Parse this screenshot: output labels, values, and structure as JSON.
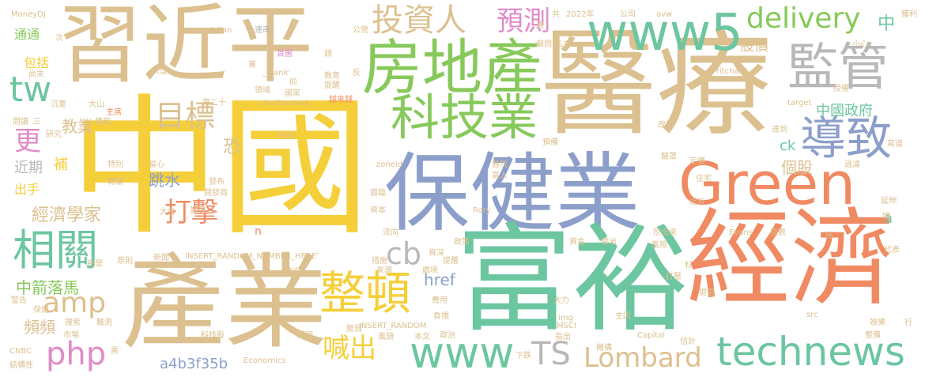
{
  "palette": {
    "tan": "#dcc08f",
    "green": "#87c95a",
    "teal": "#6cc6a0",
    "blue": "#8c9fcb",
    "orange": "#f08a62",
    "yellow": "#f5cf3a",
    "pink": "#e08bc8",
    "grey": "#b8b8b8"
  },
  "words": [
    {
      "text": "中國",
      "color": "yellow"
    },
    {
      "text": "醫療",
      "color": "tan"
    },
    {
      "text": "保健業",
      "color": "blue"
    },
    {
      "text": "富裕",
      "color": "teal"
    },
    {
      "text": "經濟",
      "color": "orange"
    },
    {
      "text": "產業",
      "color": "tan"
    },
    {
      "text": "習近平",
      "color": "tan"
    },
    {
      "text": "房地產",
      "color": "green"
    },
    {
      "text": "Green",
      "color": "orange"
    },
    {
      "text": "www5",
      "color": "teal"
    },
    {
      "text": "科技業",
      "color": "green"
    },
    {
      "text": "監管",
      "color": "grey"
    },
    {
      "text": "導致",
      "color": "blue"
    },
    {
      "text": "相關",
      "color": "teal"
    },
    {
      "text": "整頓",
      "color": "yellow"
    },
    {
      "text": "www",
      "color": "teal"
    },
    {
      "text": "TS",
      "color": "grey"
    },
    {
      "text": "Lombard",
      "color": "tan"
    },
    {
      "text": "technews",
      "color": "teal"
    },
    {
      "text": "delivery",
      "color": "green"
    },
    {
      "text": "投資人",
      "color": "tan"
    },
    {
      "text": "預測",
      "color": "pink"
    },
    {
      "text": "目標",
      "color": "tan"
    },
    {
      "text": "tw",
      "color": "teal"
    },
    {
      "text": "amp",
      "color": "tan"
    },
    {
      "text": "php",
      "color": "pink"
    },
    {
      "text": "cb",
      "color": "grey"
    },
    {
      "text": "打擊",
      "color": "orange"
    },
    {
      "text": "喊出",
      "color": "yellow"
    },
    {
      "text": "更",
      "color": "pink"
    },
    {
      "text": "經濟學家",
      "color": "tan"
    },
    {
      "text": "中箭落馬",
      "color": "green"
    },
    {
      "text": "教業",
      "color": "tan"
    },
    {
      "text": "個股",
      "color": "tan"
    },
    {
      "text": "中國政府",
      "color": "teal"
    },
    {
      "text": "股價",
      "color": "tan"
    },
    {
      "text": "中",
      "color": "teal"
    },
    {
      "text": "恐",
      "color": "tan"
    },
    {
      "text": "跳水",
      "color": "blue"
    },
    {
      "text": "a4b3f35b",
      "color": "blue"
    },
    {
      "text": "頻頻",
      "color": "tan"
    },
    {
      "text": "href",
      "color": "blue"
    },
    {
      "text": "近期",
      "color": "grey"
    },
    {
      "text": "補",
      "color": "yellow"
    },
    {
      "text": "出手",
      "color": "yellow"
    },
    {
      "text": "包括",
      "color": "yellow"
    },
    {
      "text": "通通",
      "color": "green"
    },
    {
      "text": "ck",
      "color": "teal"
    },
    {
      "text": "a",
      "color": "teal"
    },
    {
      "text": "n",
      "color": "orange"
    },
    {
      "text": "MoneyDJ",
      "color": "tan"
    },
    {
      "text": "2022年",
      "color": "tan"
    },
    {
      "text": "公司",
      "color": "tan"
    },
    {
      "text": "avw",
      "color": "tan"
    },
    {
      "text": "獲利",
      "color": "tan"
    },
    {
      "text": "Julian",
      "color": "tan"
    },
    {
      "text": "一連串",
      "color": "grey"
    },
    {
      "text": "公營",
      "color": "tan"
    },
    {
      "text": "顧問",
      "color": "tan"
    },
    {
      "text": "私立",
      "color": "tan"
    },
    {
      "text": "小心",
      "color": "tan"
    },
    {
      "text": "Pritchard",
      "color": "tan"
    },
    {
      "text": "尚未",
      "color": "tan"
    },
    {
      "text": "大型",
      "color": "tan"
    },
    {
      "text": "首圖",
      "color": "pink"
    },
    {
      "text": "錢",
      "color": "tan"
    },
    {
      "text": "_blank'",
      "color": "tan"
    },
    {
      "text": "教育",
      "color": "tan"
    },
    {
      "text": "提醒",
      "color": "tan"
    },
    {
      "text": "反",
      "color": "tan"
    },
    {
      "text": "黨",
      "color": "tan"
    },
    {
      "text": "前",
      "color": "tan"
    },
    {
      "text": "領域",
      "color": "tan"
    },
    {
      "text": "國家",
      "color": "tan"
    },
    {
      "text": "越來越",
      "color": "orange"
    },
    {
      "text": "沉重",
      "color": "tan"
    },
    {
      "text": "大山",
      "color": "tan"
    },
    {
      "text": "主席",
      "color": "orange"
    },
    {
      "text": "第二十",
      "color": "tan"
    },
    {
      "text": "shutterstock",
      "color": "tan"
    },
    {
      "text": "target",
      "color": "tan"
    },
    {
      "text": "授權",
      "color": "tan"
    },
    {
      "text": "閱讀",
      "color": "tan"
    },
    {
      "text": "三",
      "color": "tan"
    },
    {
      "text": "轉載",
      "color": "tan"
    },
    {
      "text": "研究",
      "color": "tan"
    },
    {
      "text": "改革",
      "color": "tan"
    },
    {
      "text": "達到",
      "color": "tan"
    },
    {
      "text": "預備",
      "color": "tan"
    },
    {
      "text": "報告",
      "color": "tan"
    },
    {
      "text": "寫道",
      "color": "tan"
    },
    {
      "text": "特別",
      "color": "tan"
    },
    {
      "text": "當心",
      "color": "tan"
    },
    {
      "text": "zoneid",
      "color": "tan"
    },
    {
      "text": "醫院",
      "color": "tan"
    },
    {
      "text": "龍罩",
      "color": "tan"
    },
    {
      "text": "定價",
      "color": "tan"
    },
    {
      "text": "過濾",
      "color": "tan"
    },
    {
      "text": "富人",
      "color": "tan"
    },
    {
      "text": "發布",
      "color": "tan"
    },
    {
      "text": "轉讓",
      "color": "tan"
    },
    {
      "text": "開發商",
      "color": "tan"
    },
    {
      "text": "住宅",
      "color": "tan"
    },
    {
      "text": "面臨",
      "color": "tan"
    },
    {
      "text": "資本",
      "color": "tan"
    },
    {
      "text": "北京",
      "color": "tan"
    },
    {
      "text": "延伸",
      "color": "tan"
    },
    {
      "text": "大會",
      "color": "tan"
    },
    {
      "text": "當局",
      "color": "tan"
    },
    {
      "text": "Rory",
      "color": "tan"
    },
    {
      "text": "壞",
      "color": "tan"
    },
    {
      "text": "政策",
      "color": "tan"
    },
    {
      "text": "指數",
      "color": "tan"
    },
    {
      "text": "挖出來",
      "color": "tan"
    },
    {
      "text": "Evans",
      "color": "tan"
    },
    {
      "text": "流向",
      "color": "tan"
    },
    {
      "text": "資金",
      "color": "tan"
    },
    {
      "text": "察出",
      "color": "tan"
    },
    {
      "text": "風險",
      "color": "tan"
    },
    {
      "text": "座",
      "color": "tan"
    },
    {
      "text": "代表",
      "color": "tan"
    },
    {
      "text": "原則",
      "color": "tan"
    },
    {
      "text": "新聞",
      "color": "tan"
    },
    {
      "text": "INSERT_RANDOM_NUMBER_HERE'",
      "color": "tan"
    },
    {
      "text": "措施",
      "color": "tan"
    },
    {
      "text": "資深",
      "color": "tan"
    },
    {
      "text": "提醒",
      "color": "tan"
    },
    {
      "text": "民眾",
      "color": "tan"
    },
    {
      "text": "情況",
      "color": "tan"
    },
    {
      "text": "來源",
      "color": "tan"
    },
    {
      "text": "處境",
      "color": "tan"
    },
    {
      "text": "打壓",
      "color": "tan"
    },
    {
      "text": "科",
      "color": "tan"
    },
    {
      "text": "警告",
      "color": "tan"
    },
    {
      "text": "美",
      "color": "tan"
    },
    {
      "text": "費用",
      "color": "tan"
    },
    {
      "text": "大力",
      "color": "tan"
    },
    {
      "text": "提倡",
      "color": "tan"
    },
    {
      "text": "負擔",
      "color": "tan"
    },
    {
      "text": "搜索",
      "color": "tan"
    },
    {
      "text": "難測",
      "color": "tan"
    },
    {
      "text": "INSERT_RANDOM",
      "color": "tan"
    },
    {
      "text": "img",
      "color": "tan"
    },
    {
      "text": "主因",
      "color": "tan"
    },
    {
      "text": "src",
      "color": "tan"
    },
    {
      "text": "市場",
      "color": "tan"
    },
    {
      "text": "脆弱",
      "color": "tan"
    },
    {
      "text": "MSCI",
      "color": "tan"
    },
    {
      "text": "娛樂",
      "color": "tan"
    },
    {
      "text": "行",
      "color": "tan"
    },
    {
      "text": "科技股",
      "color": "tan"
    },
    {
      "text": "英國",
      "color": "tan"
    },
    {
      "text": "風頭",
      "color": "tan"
    },
    {
      "text": "本文",
      "color": "tan"
    },
    {
      "text": "政治",
      "color": "tan"
    },
    {
      "text": "指出",
      "color": "tan"
    },
    {
      "text": "Capital",
      "color": "tan"
    },
    {
      "text": "估計",
      "color": "tan"
    },
    {
      "text": "整備",
      "color": "tan"
    },
    {
      "text": "CNBC",
      "color": "tan"
    },
    {
      "text": "需",
      "color": "tan"
    },
    {
      "text": "下跌",
      "color": "tan"
    },
    {
      "text": "機構",
      "color": "tan"
    },
    {
      "text": "結構性",
      "color": "tan"
    },
    {
      "text": "Economics",
      "color": "tan"
    },
    {
      "text": "共",
      "color": "tan"
    },
    {
      "text": "避",
      "color": "tan"
    },
    {
      "text": "次",
      "color": "tan"
    },
    {
      "text": "保健",
      "color": "tan"
    }
  ]
}
